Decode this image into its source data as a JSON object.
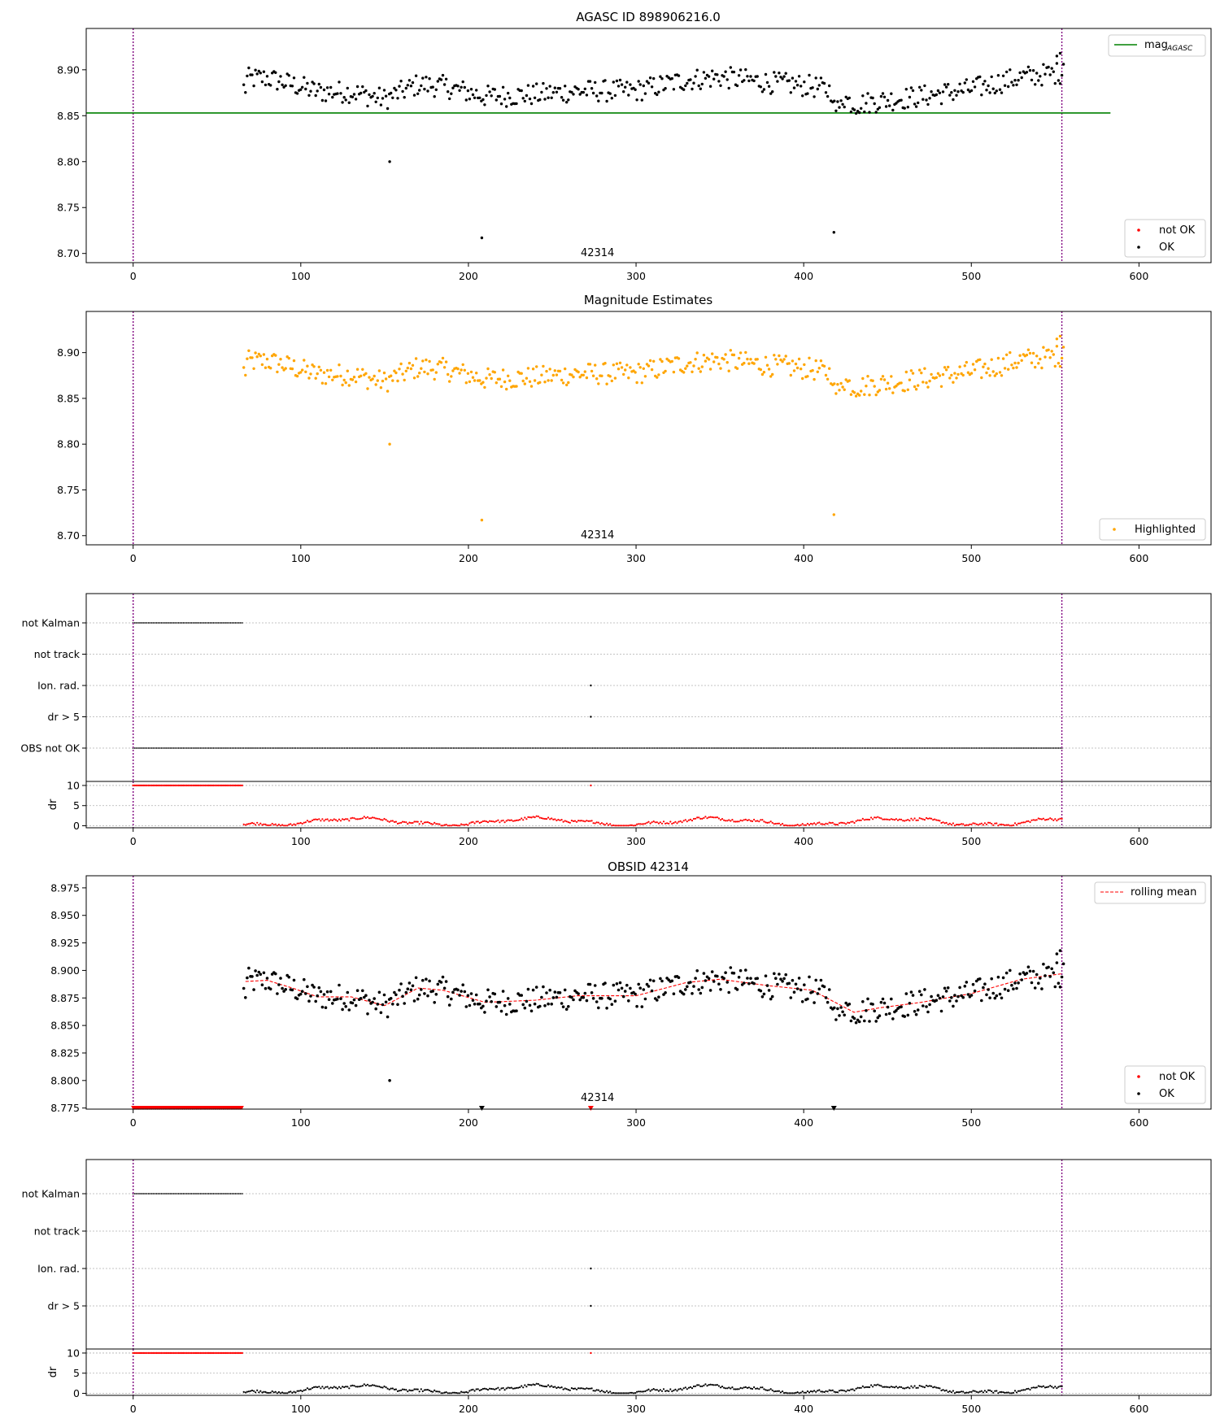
{
  "figure": {
    "obsid_marker": "42314",
    "colors": {
      "ok": "#000000",
      "not_ok": "#ff0000",
      "highlight": "#ffa500",
      "agasc_line": "#008000",
      "rolling_mean": "#ff0000",
      "obs_boundary": "#800080",
      "grid": "#b0b0b0"
    }
  },
  "chart_data": [
    {
      "id": "agasc",
      "type": "scatter",
      "title": "AGASC ID 898906216.0",
      "xlim": [
        -28,
        643
      ],
      "ylim": [
        8.69,
        8.945
      ],
      "x_ticks": [
        0,
        100,
        200,
        300,
        400,
        500,
        600
      ],
      "y_ticks": [
        8.7,
        8.75,
        8.8,
        8.85,
        8.9
      ],
      "mag_agasc": 8.853,
      "mag_agasc_x_range": [
        -28,
        583
      ],
      "obs_bounds": [
        0,
        554
      ],
      "legend_line": "mag",
      "legend_line_sub": "AGASC",
      "legend_line_loc": "upper right",
      "legend_points": [
        "not OK",
        "OK"
      ],
      "legend_points_loc": "lower right",
      "outliers": [
        [
          153,
          8.8
        ],
        [
          208,
          8.717
        ],
        [
          418,
          8.723
        ]
      ]
    },
    {
      "id": "estimates",
      "type": "scatter",
      "title": "Magnitude Estimates",
      "xlim": [
        -28,
        643
      ],
      "ylim": [
        8.69,
        8.945
      ],
      "x_ticks": [
        0,
        100,
        200,
        300,
        400,
        500,
        600
      ],
      "y_ticks": [
        8.7,
        8.75,
        8.8,
        8.85,
        8.9
      ],
      "legend": [
        "Highlighted"
      ],
      "legend_loc": "lower right"
    },
    {
      "id": "flags1",
      "type": "scatter",
      "title": "",
      "categories": [
        "not Kalman",
        "not track",
        "Ion. rad.",
        "dr > 5",
        "OBS not OK"
      ],
      "flags": {
        "not Kalman": [
          [
            0,
            65
          ]
        ],
        "not track": [],
        "Ion. rad.": [
          [
            273,
            273
          ]
        ],
        "dr > 5": [
          [
            273,
            273
          ]
        ],
        "OBS not OK": [
          [
            0,
            554
          ]
        ]
      },
      "dr_panel": {
        "ylabel": "dr",
        "y_ticks": [
          0,
          5,
          10
        ],
        "ylim": [
          -0.5,
          11
        ],
        "color": "red",
        "clipped_value": 10,
        "clipped_ranges": [
          [
            0,
            65
          ],
          [
            273,
            273
          ]
        ]
      }
    },
    {
      "id": "obsid",
      "type": "scatter",
      "title": "OBSID 42314",
      "xlim": [
        -28,
        643
      ],
      "ylim": [
        8.774,
        8.986
      ],
      "y_ticks": [
        8.775,
        8.8,
        8.825,
        8.85,
        8.875,
        8.9,
        8.925,
        8.95,
        8.975
      ],
      "legend_line": "rolling mean",
      "legend_line_loc": "upper right",
      "legend_points": [
        "not OK",
        "OK"
      ],
      "legend_points_loc": "lower right",
      "clipped_low_ok": [
        208,
        418
      ],
      "clipped_low_not_ok": [
        273
      ],
      "rolling_mean_knots": [
        [
          67,
          8.89
        ],
        [
          80,
          8.891
        ],
        [
          95,
          8.884
        ],
        [
          110,
          8.876
        ],
        [
          130,
          8.876
        ],
        [
          150,
          8.868
        ],
        [
          170,
          8.884
        ],
        [
          185,
          8.882
        ],
        [
          210,
          8.871
        ],
        [
          240,
          8.873
        ],
        [
          265,
          8.877
        ],
        [
          300,
          8.877
        ],
        [
          330,
          8.889
        ],
        [
          350,
          8.892
        ],
        [
          380,
          8.886
        ],
        [
          405,
          8.882
        ],
        [
          430,
          8.862
        ],
        [
          445,
          8.866
        ],
        [
          470,
          8.871
        ],
        [
          500,
          8.879
        ],
        [
          530,
          8.892
        ],
        [
          554,
          8.897
        ]
      ]
    },
    {
      "id": "flags2",
      "type": "scatter",
      "title": "",
      "categories": [
        "not Kalman",
        "not track",
        "Ion. rad.",
        "dr > 5"
      ],
      "flags": {
        "not Kalman": [
          [
            0,
            65
          ]
        ],
        "not track": [],
        "Ion. rad.": [
          [
            273,
            273
          ]
        ],
        "dr > 5": [
          [
            273,
            273
          ]
        ]
      },
      "dr_panel": {
        "ylabel": "dr",
        "y_ticks": [
          0,
          5,
          10
        ],
        "ylim": [
          -0.5,
          11
        ],
        "color": "black",
        "clipped_value": 10,
        "clipped_ranges": [
          [
            0,
            65
          ],
          [
            273,
            273
          ]
        ]
      }
    }
  ]
}
